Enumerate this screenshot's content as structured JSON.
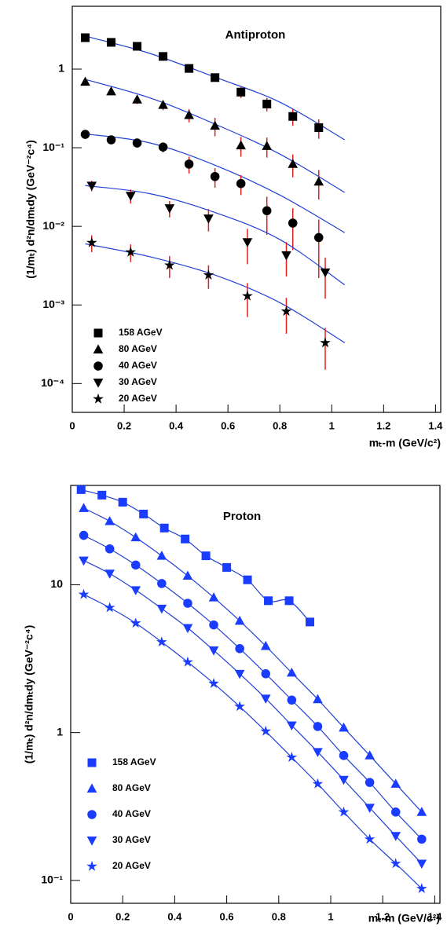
{
  "chart_data": [
    {
      "type": "scatter",
      "title": "Antiproton",
      "xlabel": "mₜ-m (GeV/c²)",
      "ylabel": "(1/mₜ) d²n/dmₜdy (GeV⁻²c⁴)",
      "xlim": [
        0,
        1.42
      ],
      "ylim": [
        4.3e-05,
        6.3
      ],
      "log_y": true,
      "xticks": [
        0,
        0.2,
        0.4,
        0.6,
        0.8,
        1,
        1.2,
        1.4
      ],
      "yticks": [
        {
          "value": 0.0001,
          "label": "10⁻⁴"
        },
        {
          "value": 0.001,
          "label": "10⁻³"
        },
        {
          "value": 0.01,
          "label": "10⁻²"
        },
        {
          "value": 0.1,
          "label": "10⁻¹"
        },
        1
      ],
      "error_color": "#e0201a",
      "fit_color": "#1f3fd6",
      "series": [
        {
          "name": "158 AGeV",
          "color": "#000000",
          "marker": "square",
          "x": [
            0.05,
            0.15,
            0.25,
            0.35,
            0.45,
            0.55,
            0.65,
            0.75,
            0.85,
            0.95
          ],
          "values": [
            2.51,
            2.19,
            1.95,
            1.45,
            1.02,
            0.78,
            0.51,
            0.36,
            0.25,
            0.18
          ],
          "errors": [
            0.1,
            0.1,
            0.1,
            0.1,
            0.1,
            0.08,
            0.08,
            0.07,
            0.06,
            0.05
          ],
          "fit_x": [
            0.05,
            0.3,
            0.55,
            0.8,
            1.05
          ],
          "fit_values": [
            2.63,
            1.58,
            0.79,
            0.38,
            0.126
          ]
        },
        {
          "name": "80 AGeV",
          "color": "#000000",
          "marker": "triangle",
          "x": [
            0.05,
            0.15,
            0.25,
            0.35,
            0.45,
            0.55,
            0.65,
            0.75,
            0.85,
            0.95
          ],
          "values": [
            0.69,
            0.52,
            0.41,
            0.35,
            0.26,
            0.19,
            0.107,
            0.105,
            0.062,
            0.037
          ],
          "errors": [
            0.05,
            0.05,
            0.05,
            0.05,
            0.05,
            0.05,
            0.03,
            0.03,
            0.02,
            0.015
          ],
          "fit_x": [
            0.05,
            0.3,
            0.55,
            0.8,
            1.05
          ],
          "fit_values": [
            0.74,
            0.43,
            0.2,
            0.083,
            0.027
          ]
        },
        {
          "name": "40 AGeV",
          "color": "#000000",
          "marker": "circle",
          "x": [
            0.05,
            0.15,
            0.25,
            0.35,
            0.45,
            0.55,
            0.65,
            0.75,
            0.85,
            0.95
          ],
          "values": [
            0.148,
            0.126,
            0.115,
            0.102,
            0.062,
            0.043,
            0.035,
            0.0158,
            0.011,
            0.0072
          ],
          "errors": [
            0.015,
            0.015,
            0.015,
            0.015,
            0.015,
            0.012,
            0.01,
            0.008,
            0.006,
            0.005
          ],
          "fit_x": [
            0.05,
            0.3,
            0.55,
            0.8,
            1.05
          ],
          "fit_values": [
            0.15,
            0.115,
            0.06,
            0.025,
            0.0083
          ]
        },
        {
          "name": "30 AGeV",
          "color": "#000000",
          "marker": "invtriangle",
          "x": [
            0.075,
            0.225,
            0.375,
            0.525,
            0.675,
            0.825,
            0.975
          ],
          "values": [
            0.033,
            0.0245,
            0.017,
            0.0126,
            0.0063,
            0.0043,
            0.0026
          ],
          "errors": [
            0.005,
            0.005,
            0.004,
            0.004,
            0.003,
            0.002,
            0.0014
          ],
          "fit_x": [
            0.05,
            0.3,
            0.55,
            0.8,
            1.05
          ],
          "fit_values": [
            0.033,
            0.026,
            0.015,
            0.0068,
            0.0018
          ]
        },
        {
          "name": "20 AGeV",
          "color": "#000000",
          "marker": "star",
          "x": [
            0.075,
            0.225,
            0.375,
            0.525,
            0.675,
            0.825,
            0.975
          ],
          "values": [
            0.0062,
            0.0047,
            0.0032,
            0.0024,
            0.0013,
            0.00083,
            0.00033
          ],
          "errors": [
            0.0015,
            0.0012,
            0.001,
            0.0008,
            0.0006,
            0.0004,
            0.00018
          ],
          "fit_x": [
            0.05,
            0.3,
            0.55,
            0.8,
            1.05
          ],
          "fit_values": [
            0.006,
            0.0041,
            0.0024,
            0.00107,
            0.00033
          ]
        }
      ]
    },
    {
      "type": "scatter",
      "title": "Proton",
      "xlabel": "mₜ-m (GeV/c²)",
      "ylabel": "(1/mₜ) d²n/dmₜdy (GeV⁻²c⁴)",
      "xlim": [
        0,
        1.42
      ],
      "ylim": [
        0.07,
        47
      ],
      "log_y": true,
      "connect": true,
      "xticks": [
        0,
        0.2,
        0.4,
        0.6,
        0.8,
        1,
        1.2,
        1.4
      ],
      "yticks": [
        {
          "value": 0.1,
          "label": "10⁻¹"
        },
        1,
        10
      ],
      "fit_color": "#1f3fd6",
      "series": [
        {
          "name": "158 AGeV",
          "color": "#1a3cff",
          "marker": "square",
          "x": [
            0.04,
            0.12,
            0.2,
            0.28,
            0.36,
            0.44,
            0.52,
            0.6,
            0.68,
            0.76,
            0.84,
            0.92
          ],
          "values": [
            44,
            40.4,
            36.2,
            30.1,
            24.2,
            20.4,
            15.7,
            13.1,
            10.8,
            7.8,
            7.8,
            5.6
          ]
        },
        {
          "name": "80 AGeV",
          "color": "#1a3cff",
          "marker": "triangle",
          "x": [
            0.05,
            0.15,
            0.25,
            0.35,
            0.45,
            0.55,
            0.65,
            0.75,
            0.85,
            0.95,
            1.05,
            1.15,
            1.25,
            1.35
          ],
          "values": [
            33,
            26.9,
            20.9,
            15.7,
            11.5,
            8.2,
            5.7,
            3.85,
            2.54,
            1.68,
            1.08,
            0.7,
            0.45,
            0.29
          ]
        },
        {
          "name": "40 AGeV",
          "color": "#1a3cff",
          "marker": "circle",
          "x": [
            0.05,
            0.15,
            0.25,
            0.35,
            0.45,
            0.55,
            0.65,
            0.75,
            0.85,
            0.95,
            1.05,
            1.15,
            1.25,
            1.35
          ],
          "values": [
            21.6,
            17.5,
            13.6,
            10.2,
            7.5,
            5.35,
            3.7,
            2.5,
            1.66,
            1.1,
            0.7,
            0.46,
            0.29,
            0.19
          ]
        },
        {
          "name": "30 AGeV",
          "color": "#1a3cff",
          "marker": "invtriangle",
          "x": [
            0.05,
            0.15,
            0.25,
            0.35,
            0.45,
            0.55,
            0.65,
            0.75,
            0.85,
            0.95,
            1.05,
            1.15,
            1.25,
            1.35
          ],
          "values": [
            14.6,
            11.9,
            9.2,
            6.9,
            5.1,
            3.6,
            2.5,
            1.7,
            1.12,
            0.74,
            0.48,
            0.31,
            0.2,
            0.13
          ]
        },
        {
          "name": "20 AGeV",
          "color": "#1a3cff",
          "marker": "star",
          "x": [
            0.05,
            0.15,
            0.25,
            0.35,
            0.45,
            0.55,
            0.65,
            0.75,
            0.85,
            0.95,
            1.05,
            1.15,
            1.25,
            1.35
          ],
          "values": [
            8.6,
            7.0,
            5.5,
            4.1,
            3.0,
            2.15,
            1.5,
            1.02,
            0.68,
            0.45,
            0.29,
            0.19,
            0.13,
            0.088
          ]
        }
      ]
    }
  ]
}
